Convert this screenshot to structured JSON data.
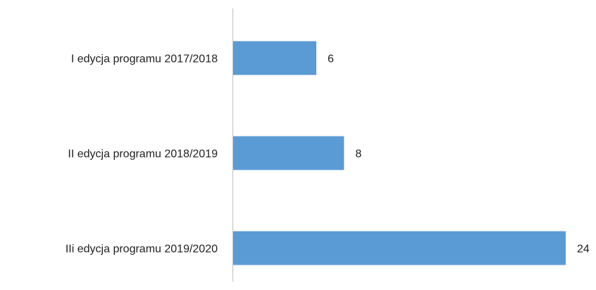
{
  "chart_data": {
    "type": "barh",
    "categories": [
      "I edycja programu 2017/2018",
      "II edycja programu 2018/2019",
      "IIi edycja programu 2019/2020"
    ],
    "values": [
      6,
      8,
      24
    ],
    "color": "#5b9bd5"
  }
}
